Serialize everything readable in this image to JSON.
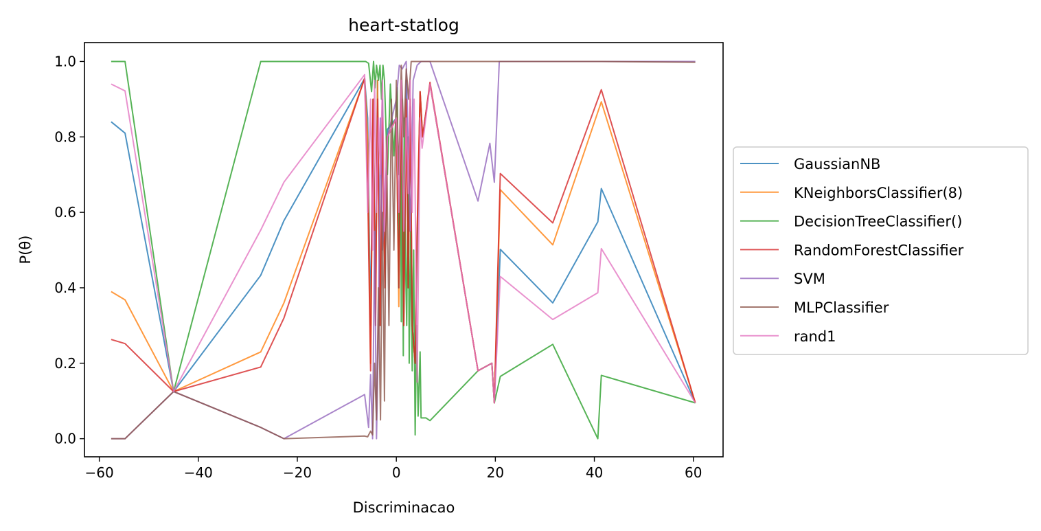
{
  "chart_data": {
    "type": "line",
    "title": "heart-statlog",
    "xlabel": "Discriminacao",
    "ylabel": "P(θ)",
    "xlim": [
      -63,
      66
    ],
    "ylim": [
      -0.048,
      1.05
    ],
    "x_ticks": [
      -60,
      -40,
      -20,
      0,
      20,
      40,
      60
    ],
    "x_tick_labels": [
      "−60",
      "−40",
      "−20",
      "0",
      "20",
      "40",
      "60"
    ],
    "y_ticks": [
      0.0,
      0.2,
      0.4,
      0.6,
      0.8,
      1.0
    ],
    "y_tick_labels": [
      "0.0",
      "0.2",
      "0.4",
      "0.6",
      "0.8",
      "1.0"
    ],
    "grid": false,
    "legend": {
      "placement": "outside-right"
    },
    "series": [
      {
        "name": "GaussianNB",
        "color": "#1f77b4",
        "points": [
          [
            -57.6,
            0.84
          ],
          [
            -54.8,
            0.81
          ],
          [
            -45.0,
            0.125
          ],
          [
            -27.4,
            0.433
          ],
          [
            -22.7,
            0.578
          ],
          [
            -6.4,
            0.955
          ],
          [
            -5.8,
            0.85
          ],
          [
            -5.2,
            0.3
          ],
          [
            -4.7,
            0.9
          ],
          [
            -4.2,
            0.4
          ],
          [
            -3.8,
            0.95
          ],
          [
            -3.3,
            0.3
          ],
          [
            -2.8,
            0.9
          ],
          [
            -2.3,
            0.4
          ],
          [
            -1.8,
            0.82
          ],
          [
            0.0,
            0.85
          ],
          [
            0.5,
            0.4
          ],
          [
            1.0,
            0.95
          ],
          [
            1.5,
            0.3
          ],
          [
            2.0,
            0.95
          ],
          [
            2.4,
            0.4
          ],
          [
            2.8,
            0.9
          ],
          [
            3.2,
            0.3
          ],
          [
            3.8,
            0.2
          ],
          [
            4.2,
            0.5
          ],
          [
            4.8,
            0.92
          ],
          [
            5.3,
            0.8
          ],
          [
            6.8,
            0.94
          ],
          [
            16.5,
            0.18
          ],
          [
            19.3,
            0.2
          ],
          [
            19.8,
            0.095
          ],
          [
            21.0,
            0.502
          ],
          [
            31.6,
            0.36
          ],
          [
            40.7,
            0.575
          ],
          [
            41.4,
            0.663
          ],
          [
            60.4,
            0.095
          ]
        ]
      },
      {
        "name": "KNeighborsClassifier(8)",
        "color": "#ff7f0e",
        "points": [
          [
            -57.6,
            0.39
          ],
          [
            -54.8,
            0.368
          ],
          [
            -45.0,
            0.125
          ],
          [
            -27.4,
            0.23
          ],
          [
            -22.7,
            0.36
          ],
          [
            -6.4,
            0.955
          ],
          [
            -5.8,
            0.8
          ],
          [
            -5.2,
            0.2
          ],
          [
            -4.7,
            0.9
          ],
          [
            -4.2,
            0.3
          ],
          [
            -3.8,
            0.95
          ],
          [
            -3.3,
            0.3
          ],
          [
            -2.8,
            0.85
          ],
          [
            -2.3,
            0.4
          ],
          [
            -1.8,
            0.8
          ],
          [
            0.0,
            0.85
          ],
          [
            0.5,
            0.35
          ],
          [
            1.0,
            0.95
          ],
          [
            1.5,
            0.3
          ],
          [
            2.0,
            0.9
          ],
          [
            2.4,
            0.4
          ],
          [
            2.8,
            0.9
          ],
          [
            3.2,
            0.3
          ],
          [
            3.8,
            0.2
          ],
          [
            4.2,
            0.55
          ],
          [
            4.8,
            0.92
          ],
          [
            5.3,
            0.8
          ],
          [
            6.8,
            0.94
          ],
          [
            16.5,
            0.18
          ],
          [
            19.3,
            0.2
          ],
          [
            19.8,
            0.095
          ],
          [
            21.0,
            0.66
          ],
          [
            31.6,
            0.514
          ],
          [
            41.4,
            0.893
          ],
          [
            60.4,
            0.095
          ]
        ]
      },
      {
        "name": "DecisionTreeClassifier()",
        "color": "#2ca02c",
        "points": [
          [
            -57.6,
            1.0
          ],
          [
            -54.8,
            1.0
          ],
          [
            -45.0,
            0.125
          ],
          [
            -27.4,
            1.0
          ],
          [
            -6.2,
            1.0
          ],
          [
            -5.6,
            0.995
          ],
          [
            -5.0,
            0.92
          ],
          [
            -4.6,
            1.0
          ],
          [
            -4.3,
            0.93
          ],
          [
            -4.0,
            0.99
          ],
          [
            -3.6,
            0.95
          ],
          [
            -3.3,
            0.99
          ],
          [
            -3.0,
            0.9
          ],
          [
            -2.7,
            0.99
          ],
          [
            -2.4,
            0.95
          ],
          [
            -1.8,
            0.7
          ],
          [
            -1.2,
            0.94
          ],
          [
            -0.5,
            0.75
          ],
          [
            0.2,
            0.93
          ],
          [
            0.5,
            0.4
          ],
          [
            0.8,
            0.8
          ],
          [
            1.0,
            0.31
          ],
          [
            1.2,
            0.9
          ],
          [
            1.4,
            0.22
          ],
          [
            1.6,
            0.85
          ],
          [
            1.8,
            0.5
          ],
          [
            2.1,
            0.3
          ],
          [
            2.4,
            0.8
          ],
          [
            2.6,
            0.2
          ],
          [
            2.9,
            0.55
          ],
          [
            3.2,
            0.18
          ],
          [
            3.5,
            0.5
          ],
          [
            3.8,
            0.01
          ],
          [
            4.1,
            0.3
          ],
          [
            4.4,
            0.06
          ],
          [
            4.8,
            0.23
          ],
          [
            5.0,
            0.055
          ],
          [
            6.0,
            0.055
          ],
          [
            6.8,
            0.048
          ],
          [
            16.5,
            0.18
          ],
          [
            19.3,
            0.2
          ],
          [
            19.8,
            0.095
          ],
          [
            21.0,
            0.165
          ],
          [
            31.6,
            0.25
          ],
          [
            40.7,
            0.0
          ],
          [
            41.4,
            0.168
          ],
          [
            60.4,
            0.095
          ]
        ]
      },
      {
        "name": "RandomForestClassifier",
        "color": "#d62728",
        "points": [
          [
            -57.6,
            0.263
          ],
          [
            -54.8,
            0.252
          ],
          [
            -45.0,
            0.125
          ],
          [
            -27.4,
            0.19
          ],
          [
            -22.7,
            0.32
          ],
          [
            -6.4,
            0.955
          ],
          [
            -5.8,
            0.67
          ],
          [
            -5.2,
            0.18
          ],
          [
            -4.7,
            0.9
          ],
          [
            -4.2,
            0.3
          ],
          [
            -3.8,
            0.9
          ],
          [
            -3.3,
            0.3
          ],
          [
            -2.8,
            0.85
          ],
          [
            -2.3,
            0.4
          ],
          [
            -1.8,
            0.8
          ],
          [
            0.0,
            0.85
          ],
          [
            0.5,
            0.4
          ],
          [
            1.0,
            0.9
          ],
          [
            1.5,
            0.3
          ],
          [
            2.0,
            0.9
          ],
          [
            2.4,
            0.4
          ],
          [
            2.8,
            0.88
          ],
          [
            3.2,
            0.3
          ],
          [
            3.8,
            0.2
          ],
          [
            4.2,
            0.55
          ],
          [
            4.8,
            0.92
          ],
          [
            5.3,
            0.8
          ],
          [
            6.8,
            0.945
          ],
          [
            16.5,
            0.18
          ],
          [
            19.3,
            0.2
          ],
          [
            19.8,
            0.095
          ],
          [
            21.0,
            0.703
          ],
          [
            31.6,
            0.572
          ],
          [
            41.4,
            0.925
          ],
          [
            60.4,
            0.095
          ]
        ]
      },
      {
        "name": "SVM",
        "color": "#9467bd",
        "points": [
          [
            -57.6,
            0.0
          ],
          [
            -54.8,
            0.0
          ],
          [
            -45.0,
            0.125
          ],
          [
            -27.4,
            0.03
          ],
          [
            -22.7,
            0.0
          ],
          [
            -6.4,
            0.117
          ],
          [
            -5.6,
            0.03
          ],
          [
            -5.2,
            0.17
          ],
          [
            -4.8,
            0.0
          ],
          [
            -4.4,
            0.55
          ],
          [
            -4.0,
            0.0
          ],
          [
            -3.6,
            0.3
          ],
          [
            -3.2,
            0.85
          ],
          [
            -2.8,
            0.5
          ],
          [
            -2.4,
            0.6
          ],
          [
            -1.8,
            0.8
          ],
          [
            0.0,
            0.9
          ],
          [
            0.6,
            0.99
          ],
          [
            1.2,
            0.98
          ],
          [
            2.0,
            1.0
          ],
          [
            2.8,
            0.55
          ],
          [
            3.4,
            0.95
          ],
          [
            4.2,
            0.99
          ],
          [
            5.0,
            1.0
          ],
          [
            6.8,
            1.0
          ],
          [
            16.5,
            0.63
          ],
          [
            18.9,
            0.783
          ],
          [
            19.8,
            0.68
          ],
          [
            20.8,
            1.0
          ],
          [
            31.6,
            1.0
          ],
          [
            41.4,
            1.0
          ],
          [
            60.4,
            1.0
          ]
        ]
      },
      {
        "name": "MLPClassifier",
        "color": "#8c564b",
        "points": [
          [
            -57.6,
            0.0
          ],
          [
            -54.8,
            0.0
          ],
          [
            -45.0,
            0.125
          ],
          [
            -27.4,
            0.03
          ],
          [
            -22.7,
            0.0
          ],
          [
            -6.4,
            0.007
          ],
          [
            -5.8,
            0.005
          ],
          [
            -5.2,
            0.02
          ],
          [
            -4.8,
            0.01
          ],
          [
            -4.4,
            0.2
          ],
          [
            -4.0,
            0.05
          ],
          [
            -3.6,
            0.4
          ],
          [
            -3.2,
            0.05
          ],
          [
            -2.8,
            0.6
          ],
          [
            -2.4,
            0.1
          ],
          [
            -2.0,
            0.8
          ],
          [
            -1.5,
            0.3
          ],
          [
            -1.0,
            0.9
          ],
          [
            -0.5,
            0.5
          ],
          [
            0.0,
            0.95
          ],
          [
            0.5,
            0.7
          ],
          [
            1.0,
            0.99
          ],
          [
            1.5,
            0.8
          ],
          [
            2.0,
            0.98
          ],
          [
            2.5,
            0.9
          ],
          [
            3.0,
            1.0
          ],
          [
            4.0,
            1.0
          ],
          [
            6.8,
            1.0
          ],
          [
            16.5,
            1.0
          ],
          [
            31.6,
            1.0
          ],
          [
            41.4,
            1.0
          ],
          [
            60.4,
            0.998
          ]
        ]
      },
      {
        "name": "rand1",
        "color": "#e377c2",
        "points": [
          [
            -57.6,
            0.94
          ],
          [
            -54.8,
            0.922
          ],
          [
            -45.0,
            0.125
          ],
          [
            -27.4,
            0.553
          ],
          [
            -22.7,
            0.68
          ],
          [
            -6.4,
            0.965
          ],
          [
            -5.8,
            0.6
          ],
          [
            -5.2,
            0.9
          ],
          [
            -4.8,
            0.5
          ],
          [
            -4.4,
            0.95
          ],
          [
            -4.0,
            0.6
          ],
          [
            -3.6,
            0.85
          ],
          [
            -3.2,
            0.7
          ],
          [
            -2.8,
            0.95
          ],
          [
            -2.4,
            0.55
          ],
          [
            -1.8,
            0.8
          ],
          [
            0.0,
            0.85
          ],
          [
            0.5,
            0.6
          ],
          [
            1.0,
            0.95
          ],
          [
            1.5,
            0.55
          ],
          [
            2.0,
            0.85
          ],
          [
            2.4,
            0.65
          ],
          [
            2.8,
            0.95
          ],
          [
            3.2,
            0.6
          ],
          [
            3.6,
            0.9
          ],
          [
            4.2,
            0.15
          ],
          [
            4.8,
            0.85
          ],
          [
            5.2,
            0.77
          ],
          [
            6.8,
            0.94
          ],
          [
            16.5,
            0.18
          ],
          [
            19.3,
            0.2
          ],
          [
            19.8,
            0.095
          ],
          [
            21.0,
            0.43
          ],
          [
            31.6,
            0.316
          ],
          [
            40.7,
            0.387
          ],
          [
            41.4,
            0.504
          ],
          [
            60.4,
            0.095
          ]
        ]
      }
    ]
  }
}
